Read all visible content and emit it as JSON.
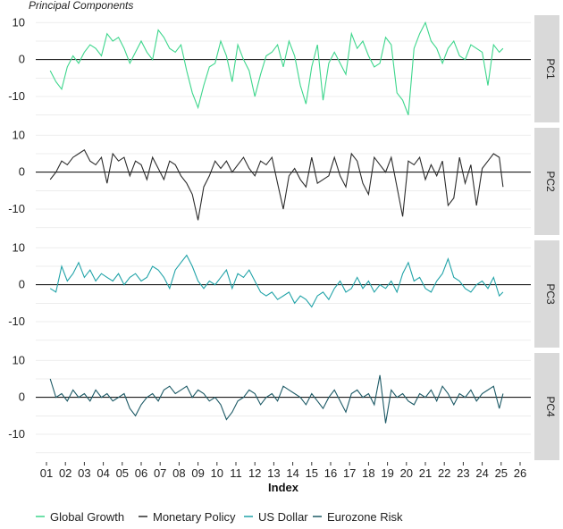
{
  "chart_data": {
    "type": "line",
    "title": "Principal Components",
    "xlabel": "Index",
    "x_ticks": [
      "01",
      "02",
      "03",
      "04",
      "05",
      "06",
      "07",
      "08",
      "09",
      "10",
      "11",
      "12",
      "13",
      "14",
      "15",
      "16",
      "17",
      "18",
      "19",
      "20",
      "21",
      "22",
      "23",
      "24",
      "25",
      "26"
    ],
    "xlim": [
      2001,
      2026
    ],
    "ylim": [
      -17,
      12
    ],
    "y_ticks": [
      10,
      0,
      -10
    ],
    "grid": true,
    "legend_position": "bottom",
    "colors": {
      "global_growth": "#3dd68c",
      "monetary_policy": "#2b2b2b",
      "us_dollar": "#21a3a8",
      "eurozone_risk": "#1d5a66",
      "strip_bg": "#d9d9d9",
      "grid": "#e6e6e6"
    },
    "legend": [
      "Global Growth",
      "Monetary Policy",
      "US Dollar",
      "Eurozone Risk"
    ],
    "panels": [
      {
        "strip": "PC1",
        "series": "Global Growth",
        "x": [
          2001.2,
          2001.5,
          2001.8,
          2002.1,
          2002.4,
          2002.7,
          2003.0,
          2003.3,
          2003.6,
          2003.9,
          2004.2,
          2004.5,
          2004.8,
          2005.1,
          2005.4,
          2005.7,
          2006.0,
          2006.3,
          2006.6,
          2006.9,
          2007.2,
          2007.5,
          2007.8,
          2008.1,
          2008.4,
          2008.7,
          2009.0,
          2009.3,
          2009.6,
          2009.9,
          2010.2,
          2010.5,
          2010.8,
          2011.1,
          2011.4,
          2011.7,
          2012.0,
          2012.3,
          2012.6,
          2012.9,
          2013.2,
          2013.5,
          2013.8,
          2014.1,
          2014.4,
          2014.7,
          2015.0,
          2015.3,
          2015.6,
          2015.9,
          2016.2,
          2016.5,
          2016.8,
          2017.1,
          2017.4,
          2017.7,
          2018.0,
          2018.3,
          2018.6,
          2018.9,
          2019.2,
          2019.5,
          2019.8,
          2020.1,
          2020.4,
          2020.7,
          2021.0,
          2021.3,
          2021.6,
          2021.9,
          2022.2,
          2022.5,
          2022.8,
          2023.1,
          2023.4,
          2023.7,
          2024.0,
          2024.3,
          2024.6,
          2024.9,
          2025.1
        ],
        "y": [
          -3,
          -6,
          -8,
          -2,
          1,
          -1,
          2,
          4,
          3,
          1,
          7,
          5,
          6,
          3,
          -1,
          2,
          5,
          2,
          0,
          8,
          6,
          3,
          2,
          4,
          -3,
          -9,
          -13,
          -7,
          -2,
          -1,
          5,
          1,
          -6,
          4,
          0,
          -3,
          -10,
          -4,
          1,
          2,
          4,
          -2,
          5,
          1,
          -7,
          -12,
          -2,
          4,
          -11,
          -1,
          2,
          -1,
          -4,
          7,
          3,
          5,
          1,
          -2,
          -1,
          6,
          4,
          -9,
          -11,
          -15,
          3,
          7,
          10,
          5,
          3,
          -1,
          3,
          5,
          1,
          0,
          4,
          3,
          2,
          -7,
          4,
          2,
          3
        ]
      },
      {
        "strip": "PC2",
        "series": "Monetary Policy",
        "x": [
          2001.2,
          2001.5,
          2001.8,
          2002.1,
          2002.4,
          2002.7,
          2003.0,
          2003.3,
          2003.6,
          2003.9,
          2004.2,
          2004.5,
          2004.8,
          2005.1,
          2005.4,
          2005.7,
          2006.0,
          2006.3,
          2006.6,
          2006.9,
          2007.2,
          2007.5,
          2007.8,
          2008.1,
          2008.4,
          2008.7,
          2009.0,
          2009.3,
          2009.6,
          2009.9,
          2010.2,
          2010.5,
          2010.8,
          2011.1,
          2011.4,
          2011.7,
          2012.0,
          2012.3,
          2012.6,
          2012.9,
          2013.2,
          2013.5,
          2013.8,
          2014.1,
          2014.4,
          2014.7,
          2015.0,
          2015.3,
          2015.6,
          2015.9,
          2016.2,
          2016.5,
          2016.8,
          2017.1,
          2017.4,
          2017.7,
          2018.0,
          2018.3,
          2018.6,
          2018.9,
          2019.2,
          2019.5,
          2019.8,
          2020.1,
          2020.4,
          2020.7,
          2021.0,
          2021.3,
          2021.6,
          2021.9,
          2022.2,
          2022.5,
          2022.8,
          2023.1,
          2023.4,
          2023.7,
          2024.0,
          2024.3,
          2024.6,
          2024.9,
          2025.1
        ],
        "y": [
          -2,
          0,
          3,
          2,
          4,
          5,
          6,
          3,
          2,
          4,
          -3,
          5,
          3,
          4,
          -1,
          3,
          2,
          -2,
          4,
          1,
          -2,
          3,
          2,
          -1,
          -3,
          -6,
          -13,
          -4,
          -1,
          3,
          1,
          3,
          0,
          2,
          4,
          1,
          -1,
          3,
          2,
          4,
          -3,
          -10,
          -1,
          1,
          -2,
          -4,
          4,
          -3,
          -2,
          -1,
          4,
          -1,
          -4,
          5,
          3,
          -3,
          -6,
          4,
          2,
          0,
          4,
          -4,
          -12,
          3,
          2,
          4,
          -2,
          2,
          -1,
          3,
          -9,
          -7,
          4,
          -3,
          2,
          -9,
          1,
          3,
          5,
          4,
          -4
        ]
      },
      {
        "strip": "PC3",
        "series": "US Dollar",
        "x": [
          2001.2,
          2001.5,
          2001.8,
          2002.1,
          2002.4,
          2002.7,
          2003.0,
          2003.3,
          2003.6,
          2003.9,
          2004.2,
          2004.5,
          2004.8,
          2005.1,
          2005.4,
          2005.7,
          2006.0,
          2006.3,
          2006.6,
          2006.9,
          2007.2,
          2007.5,
          2007.8,
          2008.1,
          2008.4,
          2008.7,
          2009.0,
          2009.3,
          2009.6,
          2009.9,
          2010.2,
          2010.5,
          2010.8,
          2011.1,
          2011.4,
          2011.7,
          2012.0,
          2012.3,
          2012.6,
          2012.9,
          2013.2,
          2013.5,
          2013.8,
          2014.1,
          2014.4,
          2014.7,
          2015.0,
          2015.3,
          2015.6,
          2015.9,
          2016.2,
          2016.5,
          2016.8,
          2017.1,
          2017.4,
          2017.7,
          2018.0,
          2018.3,
          2018.6,
          2018.9,
          2019.2,
          2019.5,
          2019.8,
          2020.1,
          2020.4,
          2020.7,
          2021.0,
          2021.3,
          2021.6,
          2021.9,
          2022.2,
          2022.5,
          2022.8,
          2023.1,
          2023.4,
          2023.7,
          2024.0,
          2024.3,
          2024.6,
          2024.9,
          2025.1
        ],
        "y": [
          -1,
          -2,
          5,
          1,
          3,
          6,
          2,
          4,
          1,
          3,
          2,
          1,
          3,
          0,
          2,
          3,
          1,
          2,
          5,
          4,
          2,
          -1,
          4,
          6,
          8,
          5,
          1,
          -1,
          1,
          0,
          2,
          4,
          -1,
          3,
          2,
          4,
          1,
          -2,
          -3,
          -2,
          -4,
          -3,
          -2,
          -5,
          -3,
          -4,
          -6,
          -3,
          -2,
          -4,
          -1,
          1,
          -2,
          -1,
          2,
          -1,
          1,
          -2,
          0,
          -1,
          1,
          -2,
          3,
          6,
          1,
          2,
          -1,
          -2,
          1,
          3,
          7,
          2,
          1,
          -1,
          -2,
          0,
          1,
          -1,
          2,
          -3,
          -2
        ]
      },
      {
        "strip": "PC4",
        "series": "Eurozone Risk",
        "x": [
          2001.2,
          2001.5,
          2001.8,
          2002.1,
          2002.4,
          2002.7,
          2003.0,
          2003.3,
          2003.6,
          2003.9,
          2004.2,
          2004.5,
          2004.8,
          2005.1,
          2005.4,
          2005.7,
          2006.0,
          2006.3,
          2006.6,
          2006.9,
          2007.2,
          2007.5,
          2007.8,
          2008.1,
          2008.4,
          2008.7,
          2009.0,
          2009.3,
          2009.6,
          2009.9,
          2010.2,
          2010.5,
          2010.8,
          2011.1,
          2011.4,
          2011.7,
          2012.0,
          2012.3,
          2012.6,
          2012.9,
          2013.2,
          2013.5,
          2013.8,
          2014.1,
          2014.4,
          2014.7,
          2015.0,
          2015.3,
          2015.6,
          2015.9,
          2016.2,
          2016.5,
          2016.8,
          2017.1,
          2017.4,
          2017.7,
          2018.0,
          2018.3,
          2018.6,
          2018.9,
          2019.2,
          2019.5,
          2019.8,
          2020.1,
          2020.4,
          2020.7,
          2021.0,
          2021.3,
          2021.6,
          2021.9,
          2022.2,
          2022.5,
          2022.8,
          2023.1,
          2023.4,
          2023.7,
          2024.0,
          2024.3,
          2024.6,
          2024.9,
          2025.1
        ],
        "y": [
          5,
          0,
          1,
          -1,
          2,
          0,
          1,
          -1,
          2,
          0,
          1,
          -1,
          0,
          1,
          -3,
          -5,
          -2,
          0,
          1,
          -1,
          2,
          3,
          1,
          2,
          3,
          0,
          2,
          1,
          -1,
          0,
          -2,
          -6,
          -4,
          -1,
          0,
          2,
          1,
          -2,
          0,
          1,
          -1,
          3,
          2,
          1,
          0,
          -2,
          1,
          -1,
          -3,
          0,
          2,
          -1,
          -4,
          1,
          2,
          0,
          1,
          -2,
          6,
          -7,
          2,
          0,
          1,
          -1,
          -2,
          1,
          0,
          2,
          -1,
          3,
          1,
          -2,
          1,
          0,
          2,
          -1,
          1,
          2,
          3,
          -3,
          1
        ]
      }
    ]
  }
}
